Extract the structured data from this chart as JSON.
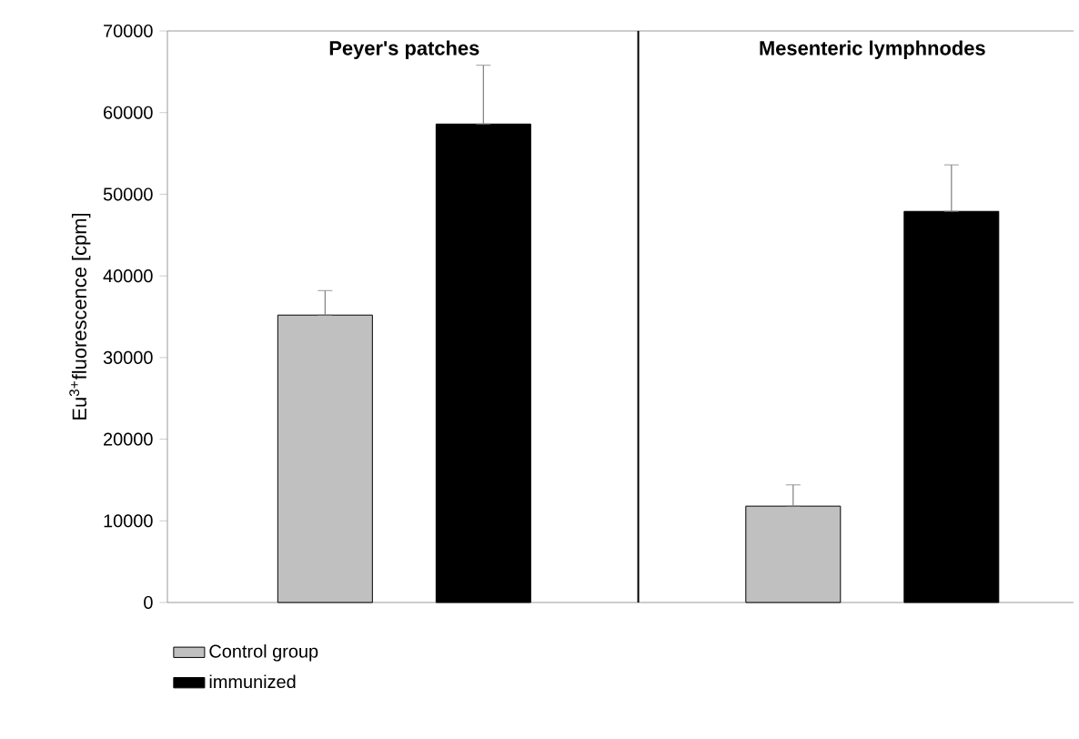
{
  "chart_data": {
    "type": "bar",
    "ylabel": "Eu$^{3+}$fluorescence [cpm]",
    "categories": [
      "Peyer's patches",
      "Mesenteric lymphnodes"
    ],
    "series": [
      {
        "name": "Control group",
        "color": "#c0c0c0",
        "values": [
          35200,
          11800
        ],
        "errors": [
          [
            35200,
            38200
          ],
          [
            11800,
            14400
          ]
        ]
      },
      {
        "name": "immunized",
        "color": "#000000",
        "values": [
          58600,
          47900
        ],
        "errors": [
          [
            58600,
            65800
          ],
          [
            47900,
            53600
          ]
        ]
      }
    ],
    "ylim": [
      0,
      70000
    ],
    "yticks": [
      0,
      10000,
      20000,
      30000,
      40000,
      50000,
      60000,
      70000
    ],
    "grid": false,
    "legend": "bottom left"
  }
}
